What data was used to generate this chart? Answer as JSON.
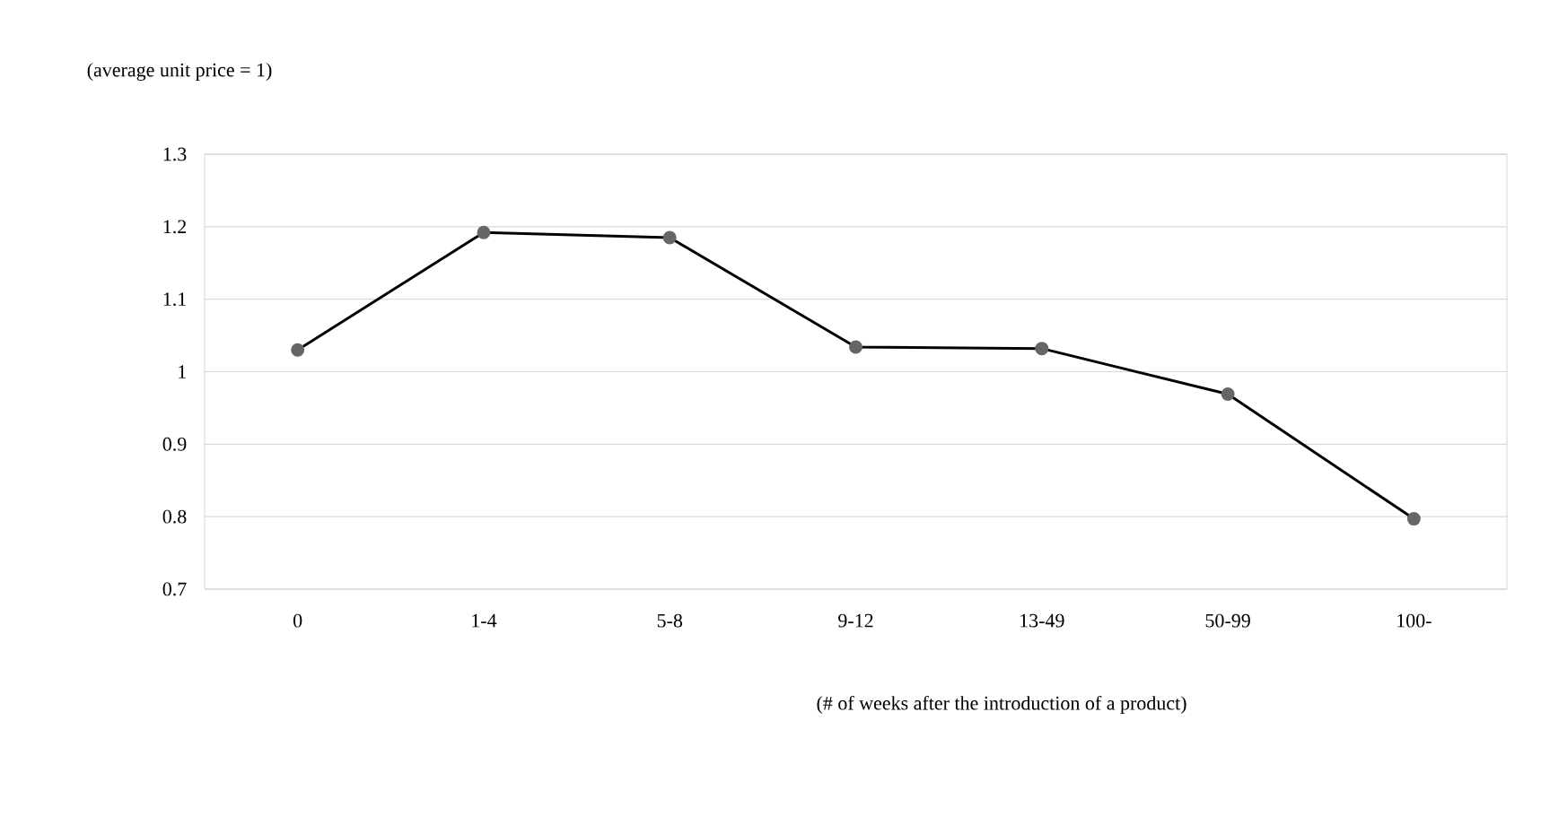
{
  "chart_data": {
    "type": "line",
    "ylabel": "(average unit price = 1)",
    "xlabel": "(# of weeks after the introduction of a product)",
    "categories": [
      "0",
      "1-4",
      "5-8",
      "9-12",
      "13-49",
      "50-99",
      "100-"
    ],
    "series": [
      {
        "color": "#000000",
        "values": [
          1.03,
          1.192,
          1.185,
          1.034,
          1.032,
          0.969,
          0.797
        ]
      }
    ],
    "ylim": [
      0.7,
      1.3
    ],
    "yticks": [
      0.7,
      0.8,
      0.9,
      1,
      1.1,
      1.2,
      1.3
    ],
    "grid": "y",
    "marker": "circle",
    "line_style": "solid"
  }
}
